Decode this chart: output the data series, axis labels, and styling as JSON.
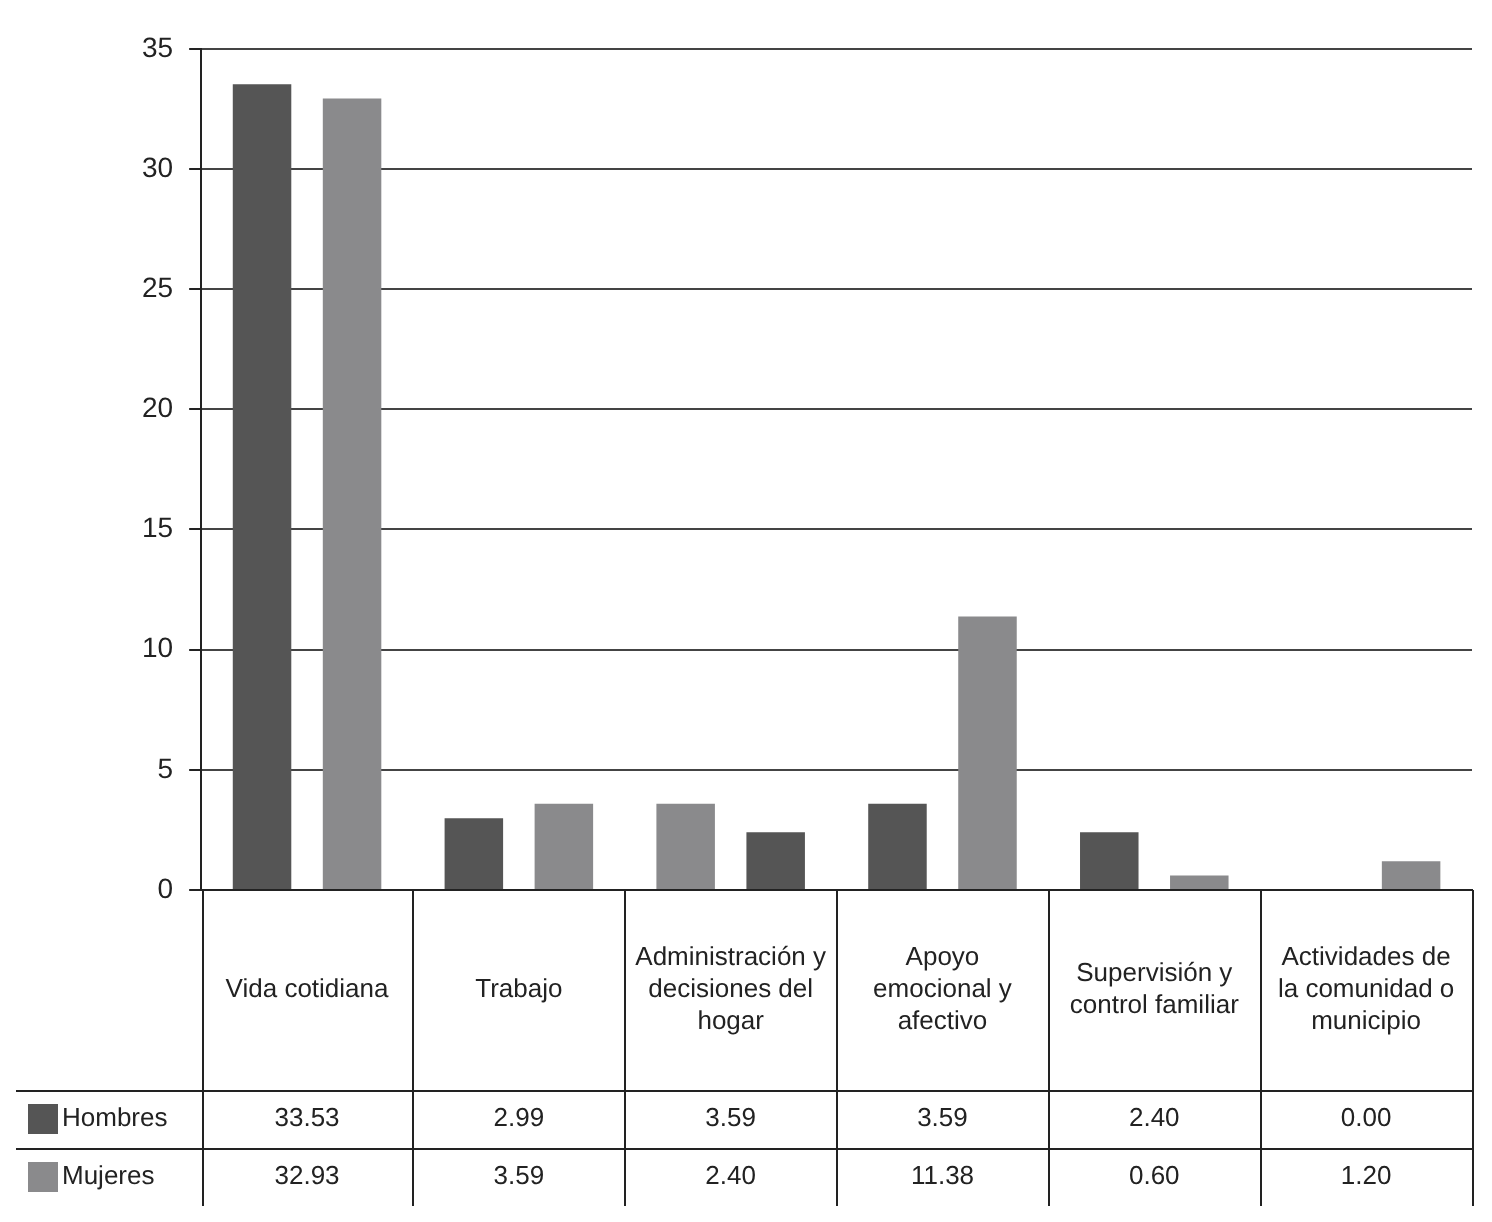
{
  "chart_data": {
    "type": "bar",
    "categories": [
      "Vida cotidiana",
      "Trabajo",
      "Administración y decisiones del hogar",
      "Apoyo emocional y afectivo",
      "Supervisión y control familiar",
      "Actividades de la comunidad o municipio"
    ],
    "series": [
      {
        "name": "Hombres",
        "color": "#555555",
        "colors": [
          "#555555",
          "#555555",
          "#8a8a8c",
          "#555555",
          "#555555",
          "#555555"
        ],
        "values": [
          33.53,
          2.99,
          3.59,
          3.59,
          2.4,
          0.0
        ],
        "value_labels": [
          "33.53",
          "2.99",
          "3.59",
          "3.59",
          "2.40",
          "0.00"
        ]
      },
      {
        "name": "Mujeres",
        "color": "#8a8a8c",
        "colors": [
          "#8a8a8c",
          "#8a8a8c",
          "#555555",
          "#8a8a8c",
          "#8a8a8c",
          "#8a8a8c"
        ],
        "values": [
          32.93,
          3.59,
          2.4,
          11.38,
          0.6,
          1.2
        ],
        "value_labels": [
          "32.93",
          "3.59",
          "2.40",
          "11.38",
          "0.60",
          "1.20"
        ]
      }
    ],
    "ylim": [
      0,
      35
    ],
    "yticks": [
      0,
      5,
      10,
      15,
      20,
      25,
      30,
      35
    ],
    "grid": "y",
    "legend": "bottom"
  }
}
